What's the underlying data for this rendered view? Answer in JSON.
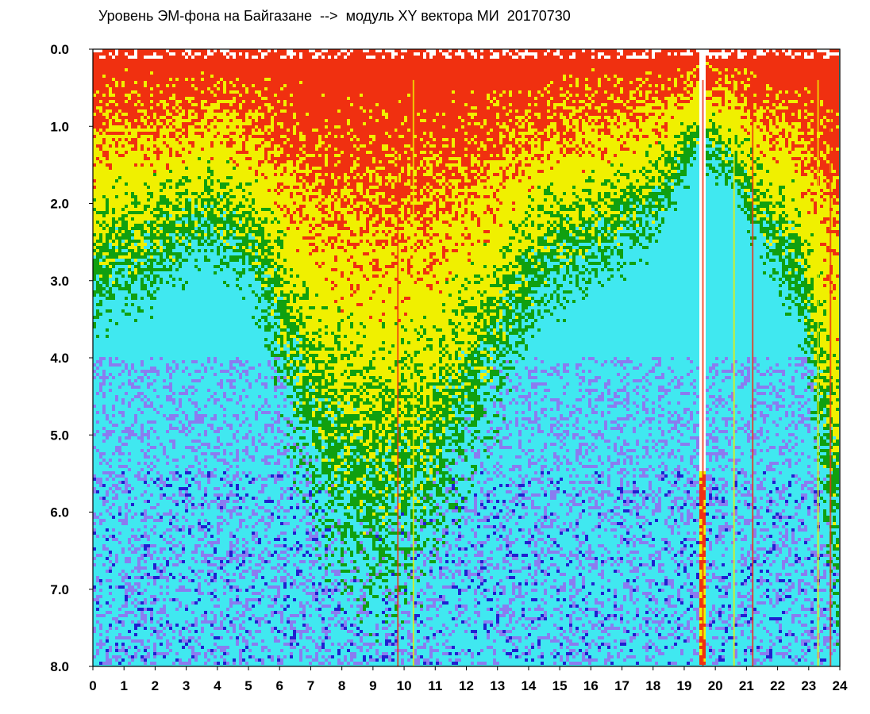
{
  "title": "Уровень ЭМ-фона на Байгазане  -->  модуль XY вектора МИ  20170730",
  "chart_data": {
    "type": "heatmap",
    "title": "Уровень ЭМ-фона на Байгазане  -->  модуль XY вектора МИ  20170730",
    "xlabel": "",
    "ylabel": "",
    "x_ticks": [
      "0",
      "1",
      "2",
      "3",
      "4",
      "5",
      "6",
      "7",
      "8",
      "9",
      "10",
      "11",
      "12",
      "13",
      "14",
      "15",
      "16",
      "17",
      "18",
      "19",
      "20",
      "21",
      "22",
      "23",
      "24"
    ],
    "y_ticks": [
      "0.0",
      "1.0",
      "2.0",
      "3.0",
      "4.0",
      "5.0",
      "6.0",
      "7.0",
      "8.0"
    ],
    "xlim": [
      0,
      24
    ],
    "ylim": [
      0,
      8
    ],
    "y_inverted": true,
    "grid": false,
    "color_scale": [
      "#2020d0",
      "#8a7cf0",
      "#40e8f0",
      "#10a010",
      "#f0f000",
      "#f03010"
    ],
    "hours": [
      0,
      0.5,
      1,
      1.5,
      2,
      2.5,
      3,
      3.5,
      4,
      4.5,
      5,
      5.5,
      6,
      6.5,
      7,
      7.5,
      8,
      8.5,
      9,
      9.5,
      10,
      10.5,
      11,
      11.5,
      12,
      12.5,
      13,
      13.5,
      14,
      14.5,
      15,
      15.5,
      16,
      16.5,
      17,
      17.5,
      18,
      18.5,
      19,
      19.5,
      20,
      20.5,
      21,
      21.5,
      22,
      22.5,
      23,
      23.5,
      24
    ],
    "level_by_hour": [
      2.6,
      2.5,
      2.4,
      2.4,
      2.3,
      2.2,
      2.1,
      2.0,
      2.0,
      2.1,
      2.3,
      2.6,
      3.2,
      3.8,
      4.2,
      4.6,
      4.8,
      5.0,
      5.1,
      5.1,
      5.0,
      4.8,
      4.6,
      4.3,
      4.0,
      3.7,
      3.4,
      3.0,
      2.7,
      2.5,
      2.4,
      2.3,
      2.2,
      2.1,
      2.0,
      1.9,
      1.8,
      1.6,
      1.3,
      1.0,
      1.2,
      1.3,
      1.6,
      2.0,
      2.2,
      2.4,
      3.0,
      4.4,
      5.5
    ],
    "gap_intervals": [
      [
        19.55,
        19.75
      ]
    ],
    "spikes_x": [
      9.8,
      10.3,
      19.6,
      20.6,
      21.2,
      23.3,
      23.7
    ]
  }
}
